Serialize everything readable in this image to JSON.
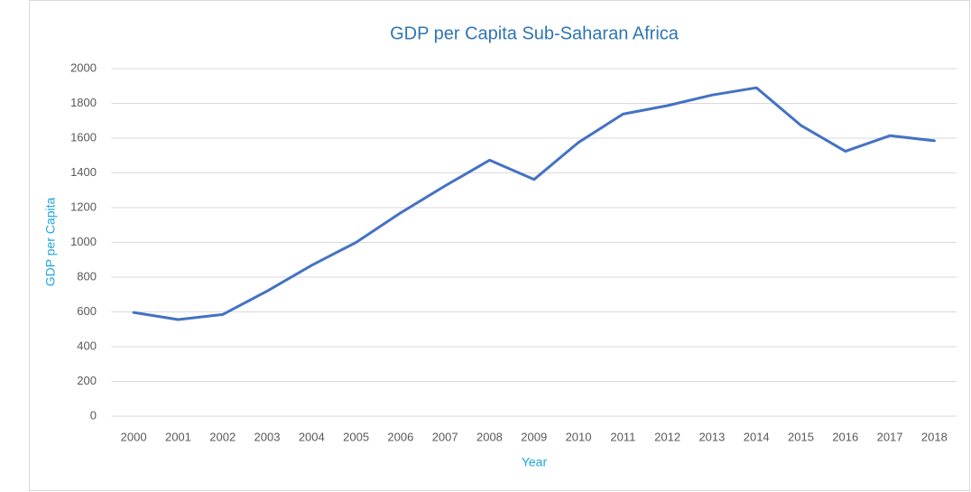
{
  "chart_data": {
    "type": "line",
    "title": "GDP per Capita Sub-Saharan Africa",
    "xlabel": "Year",
    "ylabel": "GDP per Capita",
    "categories": [
      "2000",
      "2001",
      "2002",
      "2003",
      "2004",
      "2005",
      "2006",
      "2007",
      "2008",
      "2009",
      "2010",
      "2011",
      "2012",
      "2013",
      "2014",
      "2015",
      "2016",
      "2017",
      "2018"
    ],
    "series": [
      {
        "name": "GDP per Capita",
        "color": "#4472c4",
        "values": [
          597,
          556,
          585,
          720,
          868,
          1000,
          1170,
          1325,
          1473,
          1362,
          1575,
          1738,
          1787,
          1848,
          1890,
          1673,
          1524,
          1614,
          1585
        ]
      }
    ],
    "ylim": [
      0,
      2000
    ],
    "yticks": [
      0,
      200,
      400,
      600,
      800,
      1000,
      1200,
      1400,
      1600,
      1800,
      2000
    ],
    "grid": true
  }
}
